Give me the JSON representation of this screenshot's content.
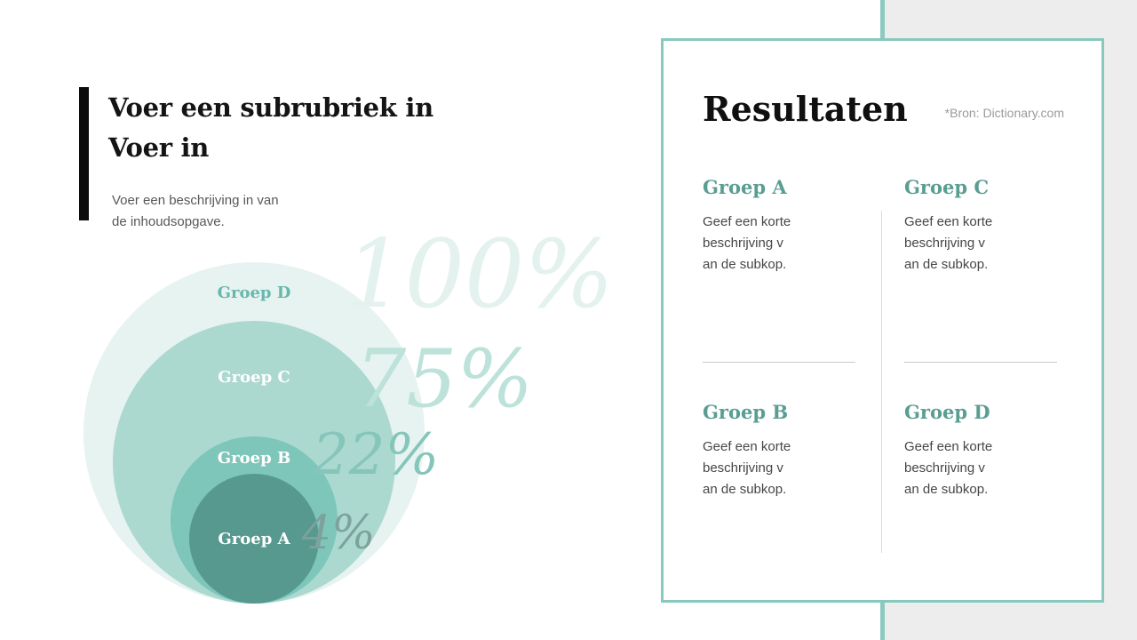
{
  "colors": {
    "accent_teal": "#87c9be",
    "side_strip": "#8ccabf",
    "side_panel_gray": "#ecedec",
    "header_bar_black": "#0c0c0c",
    "heading_teal": "#5a9d93"
  },
  "header": {
    "title": "Voer een subrubriek in\nVoer in",
    "description": "Voer een beschrijving in van\nde inhoudsopgave."
  },
  "venn": {
    "groups": [
      {
        "label": "Groep D",
        "percent": "100%",
        "circle_color": "#e6f3f0",
        "label_color": "#69b7ac",
        "percent_color": "#e3f2ee"
      },
      {
        "label": "Groep C",
        "percent": "75%",
        "circle_color": "#abd9d0",
        "label_color": "#ffffff",
        "percent_color": "#bce2da"
      },
      {
        "label": "Groep B",
        "percent": "22%",
        "circle_color": "#7ec6ba",
        "label_color": "#ffffff",
        "percent_color": "#85c5ba"
      },
      {
        "label": "Groep A",
        "percent": "4%",
        "circle_color": "#57998f",
        "label_color": "#ffffff",
        "percent_color": "#7da29c"
      }
    ]
  },
  "card": {
    "title": "Resultaten",
    "source_note": "*Bron: Dictionary.com",
    "sections": [
      {
        "heading": "Groep A",
        "body": "Geef een korte beschrijving v\nan de subkop."
      },
      {
        "heading": "Groep C",
        "body": "Geef een korte beschrijving v\nan de subkop."
      },
      {
        "heading": "Groep B",
        "body": "Geef een korte beschrijving v\nan de subkop."
      },
      {
        "heading": "Groep D",
        "body": "Geef een korte beschrijving v\nan de subkop."
      }
    ]
  },
  "chart_data": {
    "type": "pie",
    "subtype": "nested-concentric-circles",
    "categories": [
      "Groep A",
      "Groep B",
      "Groep C",
      "Groep D"
    ],
    "values": [
      4,
      22,
      75,
      100
    ],
    "unit": "%",
    "value_labels": [
      "4%",
      "22%",
      "75%",
      "100%"
    ],
    "title": "",
    "legend_position": "labels-inside-circles",
    "layout_hint": "circles bottom-aligned, size proportional to value, percentage numerals placed to the right of each circle"
  }
}
